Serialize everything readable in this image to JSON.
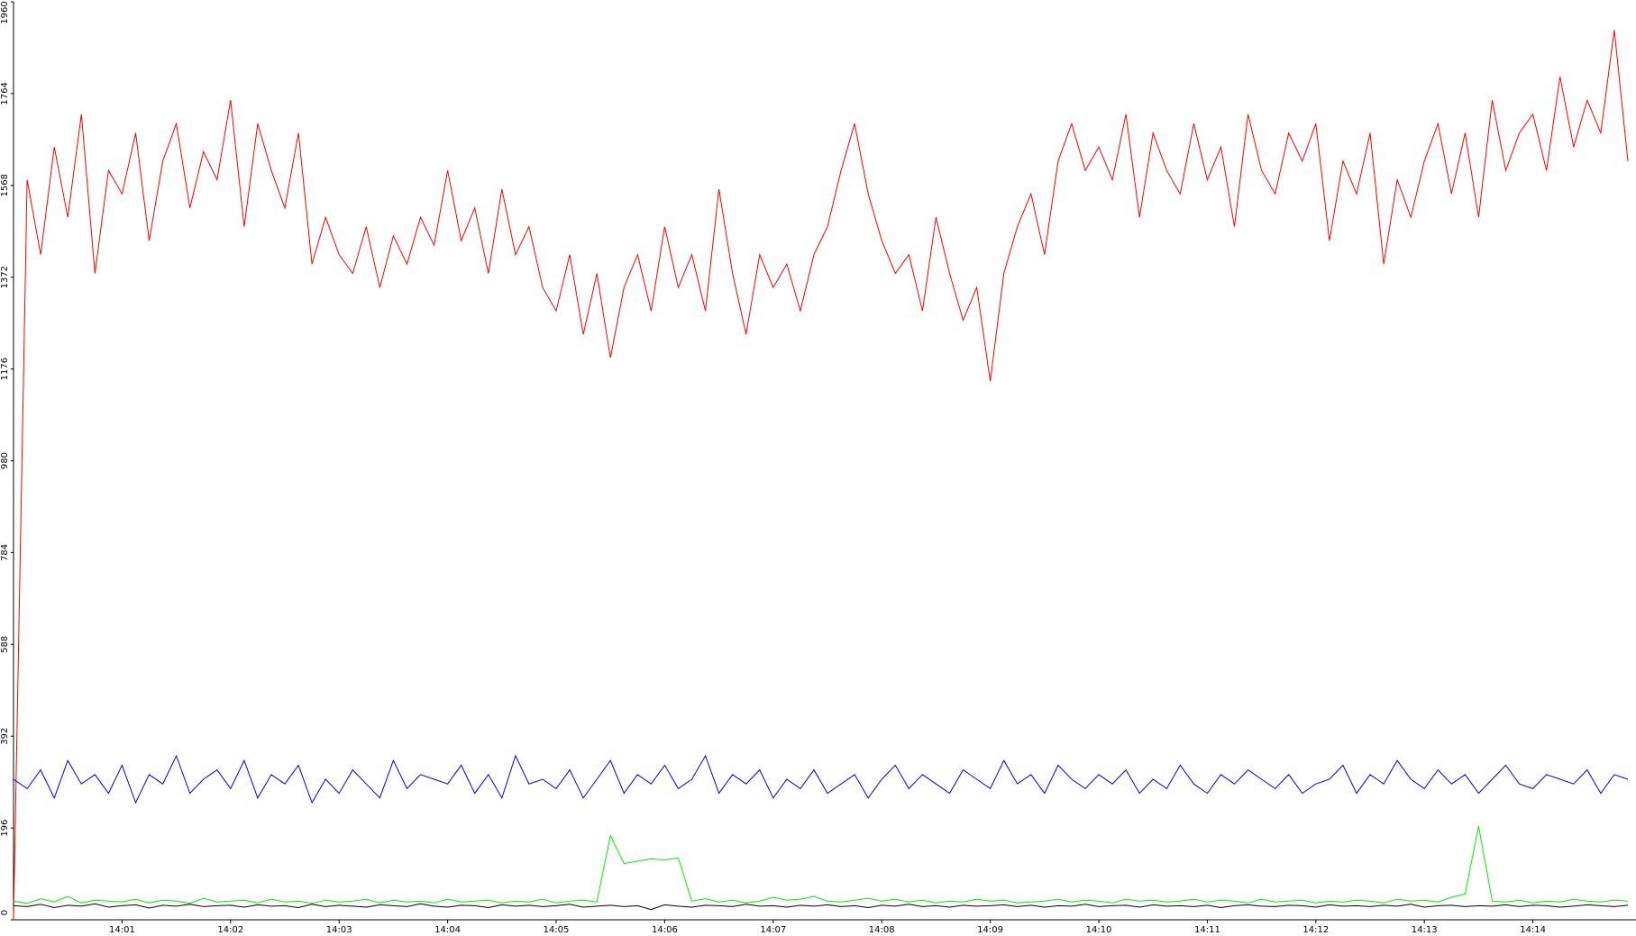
{
  "chart_data": {
    "type": "line",
    "x": [
      0,
      0.125,
      0.25,
      0.375,
      0.5,
      0.625,
      0.75,
      0.875,
      1,
      1.125,
      1.25,
      1.375,
      1.5,
      1.625,
      1.75,
      1.875,
      2,
      2.125,
      2.25,
      2.375,
      2.5,
      2.625,
      2.75,
      2.875,
      3,
      3.125,
      3.25,
      3.375,
      3.5,
      3.625,
      3.75,
      3.875,
      4,
      4.125,
      4.25,
      4.375,
      4.5,
      4.625,
      4.75,
      4.875,
      5,
      5.125,
      5.25,
      5.375,
      5.5,
      5.625,
      5.75,
      5.875,
      6,
      6.125,
      6.25,
      6.375,
      6.5,
      6.625,
      6.75,
      6.875,
      7,
      7.125,
      7.25,
      7.375,
      7.5,
      7.625,
      7.75,
      7.875,
      8,
      8.125,
      8.25,
      8.375,
      8.5,
      8.625,
      8.75,
      8.875,
      9,
      9.125,
      9.25,
      9.375,
      9.5,
      9.625,
      9.75,
      9.875,
      10,
      10.125,
      10.25,
      10.375,
      10.5,
      10.625,
      10.75,
      10.875,
      11,
      11.125,
      11.25,
      11.375,
      11.5,
      11.625,
      11.75,
      11.875,
      12,
      12.125,
      12.25,
      12.375,
      12.5,
      12.625,
      12.75,
      12.875,
      13,
      13.125,
      13.25,
      13.375,
      13.5,
      13.625,
      13.75,
      13.875,
      14,
      14.125,
      14.25,
      14.375,
      14.5,
      14.625,
      14.75,
      14.875
    ],
    "series": [
      {
        "color": "#ff0000",
        "values": [
          0,
          1580,
          1420,
          1650,
          1500,
          1720,
          1380,
          1600,
          1550,
          1680,
          1450,
          1620,
          1700,
          1520,
          1640,
          1580,
          1750,
          1480,
          1700,
          1600,
          1520,
          1680,
          1400,
          1500,
          1420,
          1380,
          1480,
          1350,
          1460,
          1400,
          1500,
          1440,
          1600,
          1450,
          1520,
          1380,
          1560,
          1420,
          1480,
          1350,
          1300,
          1420,
          1250,
          1380,
          1200,
          1350,
          1420,
          1300,
          1480,
          1350,
          1420,
          1300,
          1560,
          1380,
          1250,
          1420,
          1350,
          1400,
          1300,
          1420,
          1480,
          1600,
          1700,
          1550,
          1450,
          1380,
          1420,
          1300,
          1500,
          1380,
          1280,
          1350,
          1150,
          1380,
          1480,
          1550,
          1420,
          1620,
          1700,
          1600,
          1650,
          1580,
          1720,
          1500,
          1680,
          1600,
          1550,
          1700,
          1580,
          1650,
          1480,
          1720,
          1600,
          1550,
          1680,
          1620,
          1700,
          1450,
          1620,
          1550,
          1680,
          1400,
          1580,
          1500,
          1620,
          1700,
          1550,
          1680,
          1500,
          1750,
          1600,
          1680,
          1720,
          1600,
          1800,
          1650,
          1750,
          1680,
          1900,
          1620
        ]
      },
      {
        "color": "#0000dd",
        "values": [
          300,
          280,
          320,
          260,
          340,
          290,
          310,
          270,
          330,
          250,
          310,
          290,
          350,
          270,
          300,
          320,
          280,
          340,
          260,
          310,
          290,
          330,
          250,
          300,
          270,
          320,
          290,
          260,
          340,
          280,
          310,
          300,
          290,
          330,
          270,
          310,
          260,
          350,
          290,
          300,
          280,
          320,
          260,
          300,
          340,
          270,
          310,
          290,
          330,
          280,
          300,
          350,
          270,
          310,
          290,
          320,
          260,
          300,
          280,
          320,
          270,
          290,
          310,
          260,
          300,
          330,
          280,
          310,
          290,
          270,
          320,
          300,
          280,
          340,
          290,
          310,
          270,
          330,
          300,
          280,
          310,
          290,
          320,
          270,
          300,
          280,
          330,
          290,
          270,
          310,
          290,
          320,
          300,
          280,
          310,
          270,
          290,
          300,
          330,
          270,
          310,
          290,
          340,
          300,
          280,
          320,
          290,
          310,
          270,
          300,
          330,
          290,
          280,
          310,
          300,
          290,
          320,
          270,
          310,
          300
        ]
      },
      {
        "color": "#00ee00",
        "values": [
          40,
          35,
          45,
          38,
          50,
          36,
          42,
          40,
          38,
          44,
          36,
          42,
          40,
          35,
          46,
          38,
          40,
          42,
          36,
          44,
          38,
          40,
          35,
          42,
          38,
          40,
          44,
          36,
          42,
          38,
          40,
          36,
          44,
          38,
          40,
          42,
          36,
          40,
          38,
          44,
          36,
          40,
          42,
          38,
          180,
          120,
          125,
          130,
          128,
          132,
          40,
          45,
          38,
          42,
          36,
          40,
          48,
          42,
          44,
          50,
          40,
          38,
          42,
          46,
          40,
          44,
          38,
          42,
          36,
          40,
          38,
          44,
          40,
          42,
          36,
          38,
          40,
          44,
          38,
          42,
          40,
          36,
          44,
          40,
          42,
          38,
          40,
          44,
          38,
          42,
          40,
          36,
          44,
          38,
          40,
          42,
          36,
          40,
          38,
          42,
          40,
          36,
          44,
          40,
          42,
          38,
          48,
          55,
          200,
          40,
          38,
          42,
          36,
          40,
          38,
          44,
          40,
          38,
          42,
          40
        ]
      },
      {
        "color": "#000000",
        "values": [
          30,
          28,
          33,
          26,
          31,
          29,
          34,
          27,
          30,
          32,
          25,
          31,
          29,
          33,
          28,
          30,
          31,
          27,
          32,
          29,
          30,
          26,
          33,
          28,
          31,
          29,
          27,
          32,
          30,
          28,
          34,
          29,
          27,
          31,
          30,
          26,
          32,
          29,
          31,
          28,
          30,
          33,
          27,
          29,
          31,
          28,
          30,
          22,
          32,
          29,
          27,
          31,
          30,
          28,
          33,
          29,
          30,
          27,
          31,
          29,
          32,
          28,
          30,
          26,
          31,
          29,
          33,
          28,
          30,
          27,
          31,
          29,
          30,
          32,
          28,
          31,
          27,
          30,
          29,
          33,
          28,
          30,
          31,
          27,
          32,
          29,
          30,
          28,
          31,
          26,
          30,
          32,
          29,
          28,
          31,
          30,
          27,
          32,
          29,
          30,
          28,
          31,
          29,
          33,
          27,
          30,
          31,
          28,
          30,
          29,
          32,
          28,
          31,
          30,
          27,
          29,
          32,
          30,
          28,
          31
        ]
      }
    ],
    "xlim": [
      0,
      14.95
    ],
    "xticks": [
      {
        "value": 1,
        "label": "14:01"
      },
      {
        "value": 2,
        "label": "14:02"
      },
      {
        "value": 3,
        "label": "14:03"
      },
      {
        "value": 4,
        "label": "14:04"
      },
      {
        "value": 5,
        "label": "14:05"
      },
      {
        "value": 6,
        "label": "14:06"
      },
      {
        "value": 7,
        "label": "14:07"
      },
      {
        "value": 8,
        "label": "14:08"
      },
      {
        "value": 9,
        "label": "14:09"
      },
      {
        "value": 10,
        "label": "14:10"
      },
      {
        "value": 11,
        "label": "14:11"
      },
      {
        "value": 12,
        "label": "14:12"
      },
      {
        "value": 13,
        "label": "14:13"
      },
      {
        "value": 14,
        "label": "14:14"
      }
    ],
    "ylim": [
      0,
      1960
    ],
    "yticks": [
      0,
      196,
      392,
      588,
      784,
      980,
      1176,
      1372,
      1568,
      1764,
      1960
    ]
  }
}
